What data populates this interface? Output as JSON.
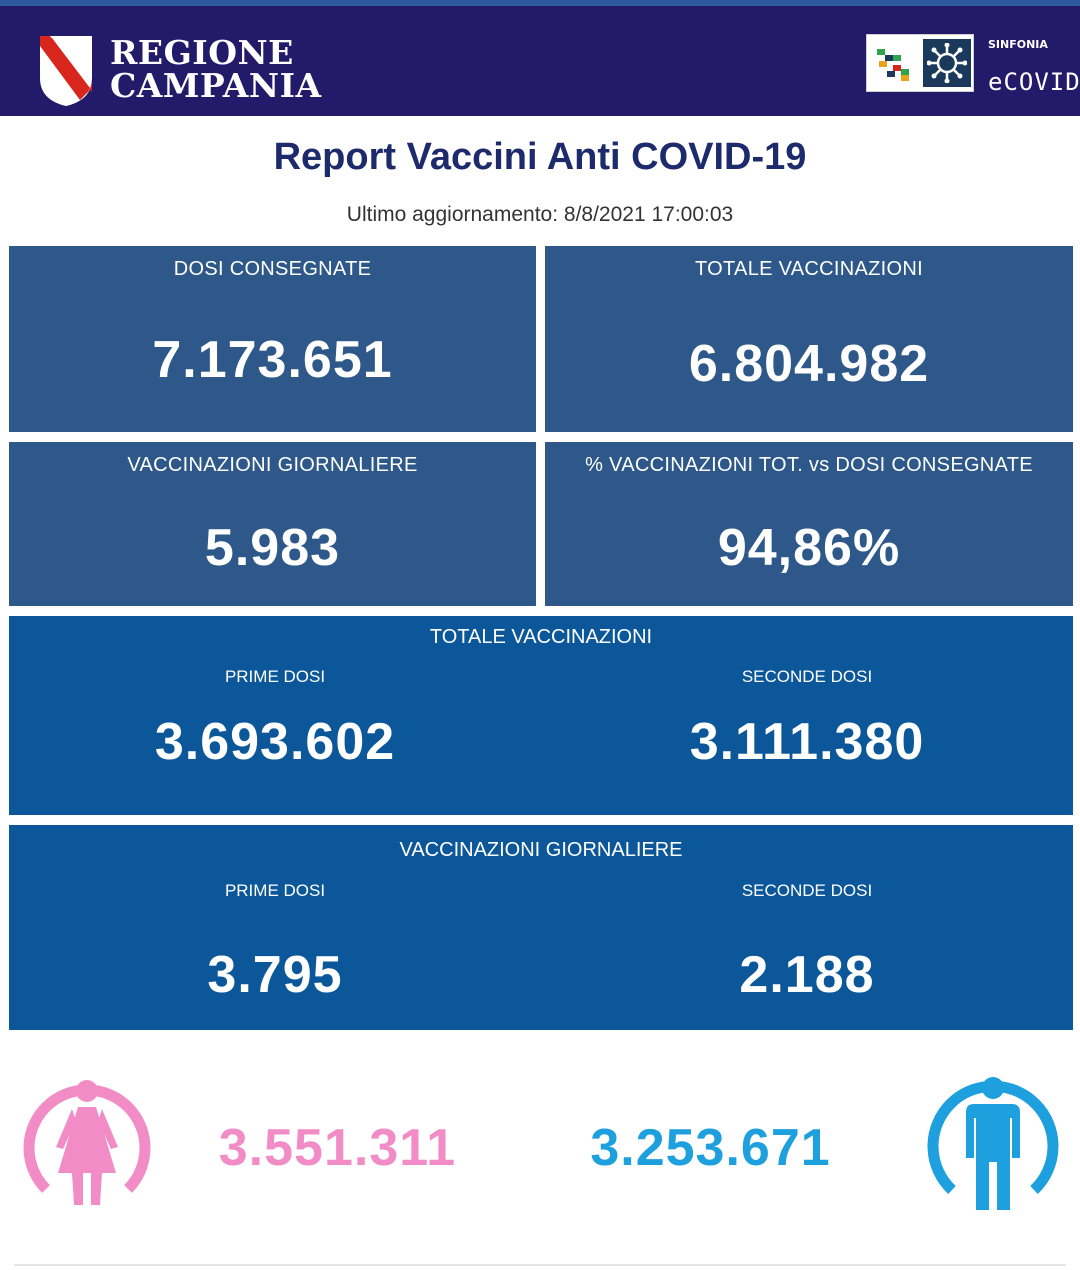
{
  "header": {
    "region_line1": "REGIONE",
    "region_line2": "CAMPANIA",
    "sinfonia": "SINFONIA",
    "ecovid": "eCOVID",
    "colors": {
      "bar": "#231b6a",
      "accent": "#2e5aa0"
    }
  },
  "report": {
    "title": "Report Vaccini Anti COVID-19",
    "updated": "Ultimo aggiornamento: 8/8/2021  17:00:03"
  },
  "cards": {
    "dosi_consegnate": {
      "label": "DOSI  CONSEGNATE",
      "value": "7.173.651"
    },
    "totale_vaccinazioni": {
      "label": "TOTALE VACCINAZIONI",
      "value": "6.804.982"
    },
    "vaccinazioni_giornaliere": {
      "label": "VACCINAZIONI GIORNALIERE",
      "value": "5.983"
    },
    "percentuale": {
      "label": "% VACCINAZIONI TOT. vs DOSI CONSEGNATE",
      "value": "94,86%"
    }
  },
  "totale_breakdown": {
    "heading": "TOTALE VACCINAZIONI",
    "prime_label": "PRIME DOSI",
    "prime_value": "3.693.602",
    "seconde_label": "SECONDE DOSI",
    "seconde_value": "3.111.380"
  },
  "giornaliere_breakdown": {
    "heading": "VACCINAZIONI GIORNALIERE",
    "prime_label": "PRIME DOSI",
    "prime_value": "3.795",
    "seconde_label": "SECONDE DOSI",
    "seconde_value": "2.188"
  },
  "gender": {
    "female_value": "3.551.311",
    "male_value": "3.253.671",
    "female_icon": "female-icon",
    "male_icon": "male-icon",
    "female_color": "#f28cc6",
    "male_color": "#1da0dd"
  }
}
